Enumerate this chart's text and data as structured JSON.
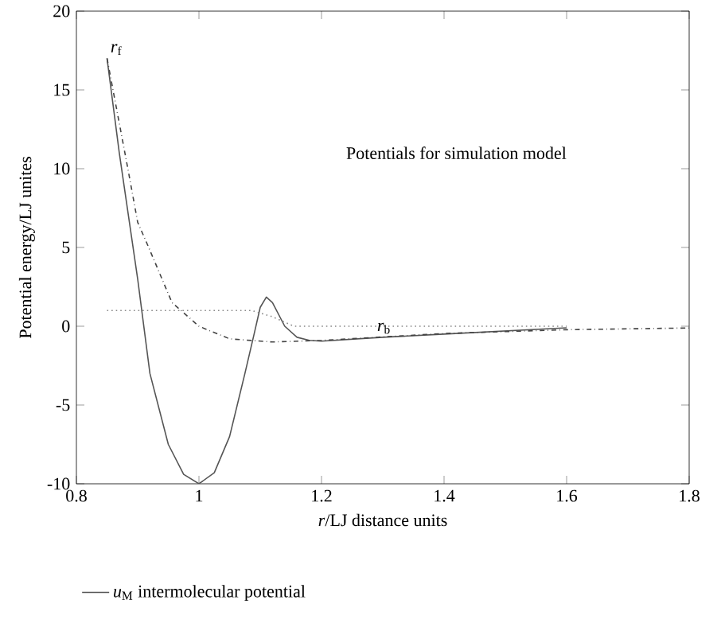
{
  "chart_data": {
    "type": "line",
    "title": "Potentials for simulation model",
    "xlabel": "*r*/LJ distance units",
    "ylabel": "Potential energy/LJ unites",
    "xlim": [
      0.8,
      1.8
    ],
    "ylim": [
      -10,
      20
    ],
    "xticks": [
      0.8,
      1,
      1.2,
      1.4,
      1.6,
      1.8
    ],
    "yticks": [
      -10,
      -5,
      0,
      5,
      10,
      15,
      20
    ],
    "legend": "bottom",
    "marker": "none",
    "series": [
      {
        "name": "*u*$_{M}$ intermolecular potential",
        "color": "#555555",
        "line_style": "solid",
        "x": [
          0.85,
          0.87,
          0.9,
          0.92,
          0.95,
          0.975,
          1.0,
          1.025,
          1.05,
          1.075,
          1.09,
          1.1,
          1.11,
          1.12,
          1.14,
          1.16,
          1.18,
          1.2,
          1.3,
          1.4,
          1.5,
          1.6
        ],
        "values": [
          17,
          11,
          3,
          -3,
          -7.5,
          -9.4,
          -10,
          -9.3,
          -7,
          -3,
          -0.5,
          1.2,
          1.85,
          1.5,
          0,
          -0.7,
          -0.9,
          -0.95,
          -0.7,
          -0.5,
          -0.3,
          -0.1
        ]
      },
      {
        "color": "#444444",
        "line_style": "dashdotted",
        "x": [
          0.85,
          0.884,
          0.9,
          0.918,
          0.956,
          1.0,
          1.05,
          1.12,
          1.2,
          1.4,
          1.6,
          1.8
        ],
        "values": [
          17,
          10,
          6.6,
          5,
          1.5,
          0,
          -0.8,
          -1,
          -0.9,
          -0.46,
          -0.22,
          -0.11
        ]
      },
      {
        "color": "#888888",
        "line_style": "dotted",
        "x": [
          0.85,
          1.086,
          1.12,
          1.155,
          1.6
        ],
        "values": [
          1,
          1,
          0.6,
          0,
          0
        ]
      }
    ],
    "annotations": [
      {
        "text": "*r*$_{f}$",
        "x": 0.85,
        "y": 17
      },
      {
        "text": "*r*$_{b}$",
        "x": 1.285,
        "y": -0.7
      }
    ]
  }
}
